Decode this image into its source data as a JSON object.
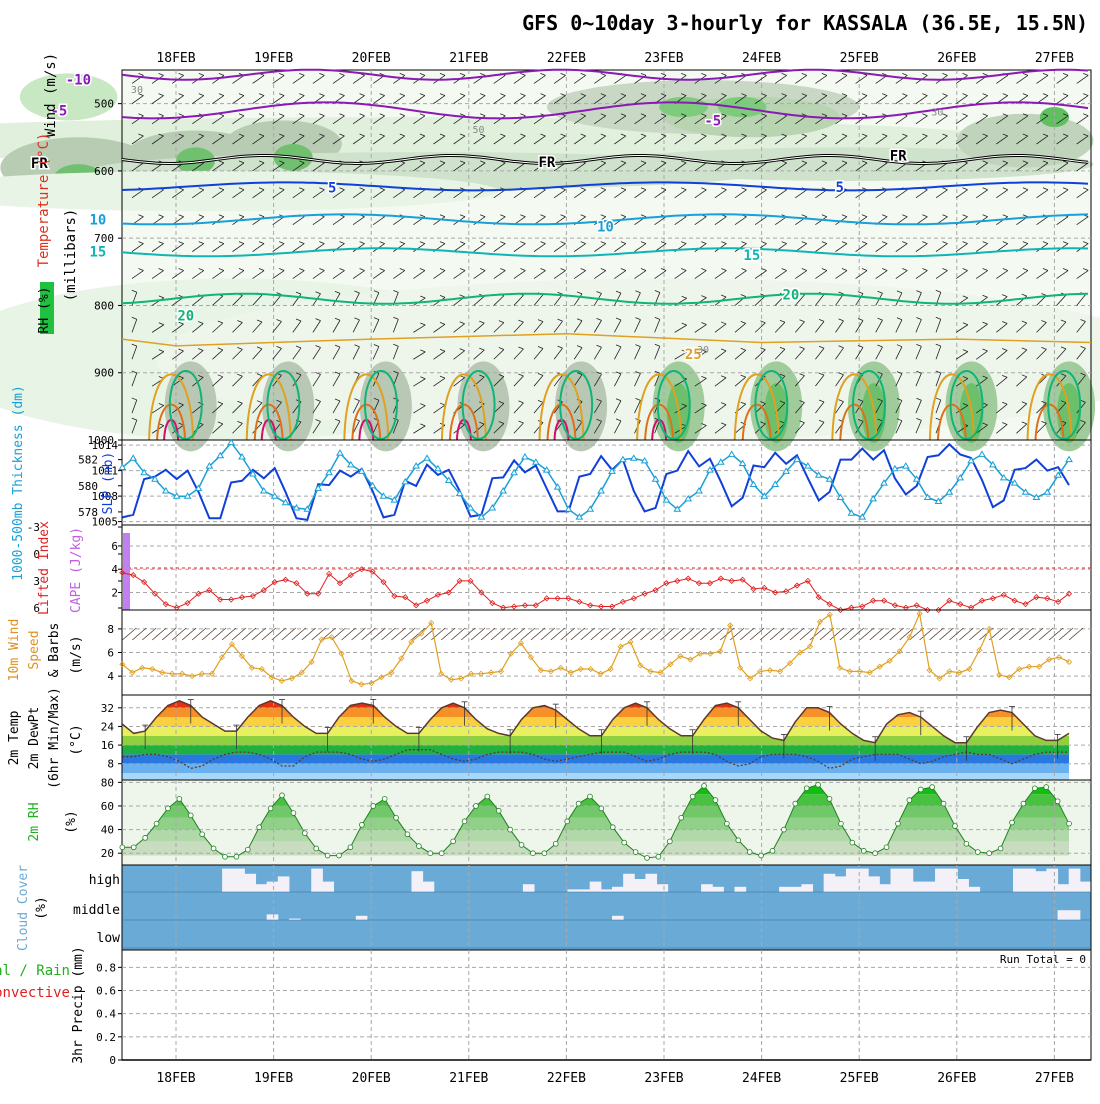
{
  "title": "GFS 0~10day 3-hourly for KASSALA (36.5E, 15.5N)",
  "dates": [
    "18FEB",
    "19FEB",
    "20FEB",
    "21FEB",
    "22FEB",
    "23FEB",
    "24FEB",
    "25FEB",
    "26FEB",
    "27FEB"
  ],
  "run_total": "Run Total = 0",
  "colors": {
    "purple": "#8a1ab4",
    "blue": "#1040d8",
    "cyan": "#18a0d8",
    "teal": "#10b4b4",
    "green": "#10b478",
    "orange": "#e0a020",
    "darkorange": "#e07018",
    "magenta": "#d0106a",
    "cloud": "#6aaad6",
    "rain": "#e02020",
    "rhgreen": "#20b020"
  },
  "chart_data": [
    {
      "type": "contour",
      "panel": "upper-air",
      "ylabel_parts": [
        "RH (%)",
        "Temperature (°C)",
        "Wind (m/s)"
      ],
      "yunit": "(millibars)",
      "yticks": [
        "500",
        "600",
        "700",
        "800",
        "900",
        "1000"
      ],
      "ylim": [
        1000,
        450
      ],
      "contour_labels": [
        {
          "text": "-10",
          "t": -1.0,
          "p": 464,
          "color": "purple"
        },
        {
          "text": "-5",
          "t": -1.2,
          "p": 510,
          "color": "purple"
        },
        {
          "text": "-5",
          "t": 5.5,
          "p": 525,
          "color": "purple"
        },
        {
          "text": "FR",
          "t": -1.4,
          "p": 588,
          "color": "black"
        },
        {
          "text": "FR",
          "t": 3.8,
          "p": 587,
          "color": "black"
        },
        {
          "text": "FR",
          "t": 7.4,
          "p": 577,
          "color": "black"
        },
        {
          "text": "5",
          "t": 1.6,
          "p": 625,
          "color": "blue"
        },
        {
          "text": "5",
          "t": 6.8,
          "p": 624,
          "color": "blue"
        },
        {
          "text": "10",
          "t": -0.8,
          "p": 672,
          "color": "cyan"
        },
        {
          "text": "10",
          "t": 4.4,
          "p": 683,
          "color": "cyan"
        },
        {
          "text": "15",
          "t": -0.8,
          "p": 720,
          "color": "teal"
        },
        {
          "text": "15",
          "t": 5.9,
          "p": 725,
          "color": "teal"
        },
        {
          "text": "20",
          "t": 6.3,
          "p": 784,
          "color": "green"
        },
        {
          "text": "20",
          "t": 0.1,
          "p": 815,
          "color": "green"
        },
        {
          "text": "25",
          "t": 5.3,
          "p": 872,
          "color": "orange"
        },
        {
          "text": "0",
          "t": -2.0,
          "p": 932,
          "color": "green"
        }
      ],
      "rh_labels": [
        {
          "text": "30",
          "t": -0.4,
          "p": 478
        },
        {
          "text": "50",
          "t": 3.1,
          "p": 538
        },
        {
          "text": "30",
          "t": 7.8,
          "p": 512
        },
        {
          "text": "30",
          "t": -2.8,
          "p": 640
        },
        {
          "text": "30",
          "t": 5.4,
          "p": 865
        }
      ]
    },
    {
      "type": "line",
      "panel": "thickness-slp",
      "ylabel": "1000-500mb Thickness (dm)",
      "ylabel2": "SLP (mb)",
      "yticks_left": [
        "578",
        "580",
        "582"
      ],
      "yticks_right": [
        "1005",
        "1008",
        "1011",
        "1014"
      ],
      "ylim_left": [
        577,
        583.5
      ],
      "ylim_right": [
        1004.6,
        1014.6
      ],
      "series": [
        {
          "axis": "right",
          "color": "blue",
          "values": [
            1005.5,
            1005.8,
            1010,
            1010.3,
            1011.1,
            1010,
            1011,
            1008.5,
            1005.4,
            1005.4,
            1009.6,
            1009.8,
            1011.1,
            1010.1,
            1011.3,
            1008.5,
            1005.4,
            1005.2,
            1009.4,
            1009.3,
            1011,
            1010.3,
            1011.2,
            1008.6,
            1005.5,
            1005.8,
            1009.8,
            1009.2,
            1011.7,
            1010.5,
            1011.1,
            1008.6,
            1005.6,
            1005.8,
            1010.1,
            1010.2,
            1012.2,
            1010.8,
            1011.6,
            1008.9,
            1006.2,
            1006.2,
            1010.3,
            1010.6,
            1012.7,
            1011.1,
            1012.3,
            1008.6,
            1006.2,
            1006.6,
            1010.6,
            1011,
            1013.3,
            1011.5,
            1012.4,
            1009.7,
            1006.8,
            1007.8,
            1011.6,
            1011.4,
            1013.1,
            1011.8,
            1012.8,
            1010.1,
            1007.5,
            1008.5,
            1012.3,
            1012.3,
            1013.6,
            1012.3,
            1013.4,
            1010.1,
            1008.2,
            1009.2,
            1012.6,
            1012.8,
            1014.1,
            1012.9,
            1012.5,
            1009.9,
            1006.7,
            1007.5,
            1011.1,
            1011.3,
            1012.3,
            1011,
            1011.4,
            1009.3
          ]
        },
        {
          "axis": "left",
          "color": "cyan",
          "values": [
            581.4,
            582.1,
            581,
            580.5,
            579.6,
            579.2,
            579.2,
            579.8,
            581.5,
            582.3,
            583.3,
            582.2,
            580.9,
            579.6,
            579.2,
            578.7,
            578.3,
            578.2,
            579.8,
            581,
            582.5,
            581.6,
            581.1,
            580,
            579.2,
            578.9,
            580.3,
            581.5,
            582.1,
            581.3,
            580.4,
            579.4,
            578.3,
            577.6,
            578.3,
            579.6,
            581,
            582.2,
            581.8,
            581.2,
            579.9,
            578.2,
            577.6,
            578.2,
            579.6,
            581.1,
            582,
            582.1,
            581.9,
            580.5,
            578.9,
            578.2,
            579,
            579.6,
            581.2,
            581.8,
            582.4,
            581.7,
            580.1,
            579.2,
            580.1,
            581.1,
            582,
            581.5,
            580.8,
            580.5,
            579.1,
            577.9,
            577.6,
            579,
            580.2,
            581.3,
            581.5,
            580.5,
            579.1,
            578.8,
            579.5,
            580.6,
            581.9,
            582.4,
            581.6,
            580.6,
            580.2,
            579.5,
            579.1,
            579.5,
            580.8,
            582
          ]
        }
      ]
    },
    {
      "type": "line",
      "panel": "stability",
      "ylabel": "Lifted Index",
      "ylabel2": "CAPE (J/kg)",
      "yticks_left": [
        "-3",
        "0",
        "3",
        "6"
      ],
      "yticks_right": [
        "2",
        "4",
        "6"
      ],
      "ylim_right": [
        0.5,
        7.8
      ],
      "series": [
        {
          "axis": "right",
          "color": "rain",
          "values": [
            3.7,
            3.5,
            2.9,
            1.9,
            1,
            0.7,
            1.1,
            1.9,
            2.2,
            1.4,
            1.4,
            1.6,
            1.7,
            2.2,
            2.9,
            3.1,
            2.8,
            1.9,
            1.9,
            3.6,
            2.8,
            3.5,
            4,
            3.8,
            2.9,
            1.7,
            1.6,
            0.9,
            1.3,
            1.8,
            2,
            3,
            3,
            2,
            1.1,
            0.7,
            0.8,
            0.9,
            0.9,
            1.5,
            1.5,
            1.5,
            1.2,
            0.9,
            0.8,
            0.8,
            1.2,
            1.5,
            1.9,
            2.2,
            2.8,
            3,
            3.2,
            2.8,
            2.8,
            3.2,
            3,
            3.1,
            2.3,
            2.4,
            2,
            2.1,
            2.6,
            3,
            1.6,
            1,
            0.5,
            0.7,
            0.8,
            1.3,
            1.3,
            0.9,
            0.7,
            0.9,
            0.5,
            0.5,
            1.3,
            1,
            0.7,
            1.3,
            1.5,
            1.8,
            1.3,
            1,
            1.6,
            1.5,
            1.2,
            1.9
          ]
        }
      ]
    },
    {
      "type": "line",
      "panel": "wind10m",
      "ylabel": "10m Wind Speed & Barbs",
      "yunit": "(m/s)",
      "yticks": [
        "4",
        "6",
        "8"
      ],
      "ylim": [
        2.4,
        9.6
      ],
      "series": [
        {
          "color": "orange",
          "values": [
            5,
            4.3,
            4.7,
            4.6,
            4.3,
            4.2,
            4.2,
            4,
            4.2,
            4.2,
            5.6,
            6.7,
            5.7,
            4.7,
            4.6,
            3.9,
            3.6,
            3.8,
            4.3,
            5.2,
            7.1,
            7.3,
            5.9,
            3.6,
            3.3,
            3.4,
            3.9,
            4.3,
            5.5,
            6.9,
            7.6,
            8.5,
            4.2,
            3.7,
            3.8,
            4.2,
            4.2,
            4.3,
            4.4,
            5.9,
            6.8,
            5.6,
            4.5,
            4.4,
            4.7,
            4.3,
            4.6,
            4.6,
            4.2,
            4.6,
            6.5,
            6.9,
            4.9,
            4.4,
            4.3,
            5,
            5.7,
            5.4,
            5.9,
            5.9,
            6.1,
            8.3,
            4.7,
            3.8,
            4.4,
            4.5,
            4.4,
            5.1,
            6,
            6.5,
            8.6,
            9.2,
            4.7,
            4.4,
            4.4,
            4.3,
            4.8,
            5.3,
            6.1,
            7.3,
            9.3,
            4.5,
            3.8,
            4.4,
            4.3,
            4.6,
            6.2,
            8,
            4.1,
            3.9,
            4.6,
            4.8,
            4.8,
            5.4,
            5.6,
            5.2
          ]
        }
      ]
    },
    {
      "type": "area",
      "panel": "temp2m",
      "ylabel": "2m Temp 2m DewPt (6hr Min/Max)",
      "yunit": "(°C)",
      "yticks": [
        "8",
        "16",
        "24",
        "32"
      ],
      "ylim": [
        1,
        37.5
      ],
      "series": [
        {
          "name": "temp",
          "values": [
            25,
            21,
            22,
            28,
            33,
            35,
            33,
            28,
            25,
            22,
            22,
            28,
            33,
            35,
            33,
            28,
            24,
            21,
            21,
            28,
            33,
            34,
            33,
            28,
            24,
            21,
            21,
            27,
            32,
            34,
            32,
            27,
            23,
            21,
            20,
            27,
            32,
            33,
            31,
            27,
            23,
            20,
            20,
            27,
            32,
            34,
            32,
            27,
            23,
            20,
            20,
            27,
            33,
            34,
            32,
            27,
            22,
            19,
            18,
            26,
            32,
            32,
            30,
            25,
            21,
            18,
            17,
            25,
            29,
            30,
            28,
            24,
            20,
            17,
            17,
            24,
            30,
            31,
            30,
            25,
            20,
            18,
            18,
            21
          ]
        },
        {
          "name": "dewpt",
          "values": [
            11,
            11,
            12,
            12,
            11,
            9,
            6,
            7,
            10,
            12,
            13,
            13,
            12,
            10,
            7,
            7,
            11,
            13,
            13,
            13,
            12,
            10,
            9,
            10,
            12,
            14,
            14,
            14,
            12,
            10,
            9,
            10,
            12,
            13,
            13,
            13,
            12,
            10,
            9,
            10,
            11,
            12,
            13,
            13,
            13,
            11,
            9,
            10,
            12,
            13,
            13,
            13,
            12,
            9,
            7,
            8,
            11,
            12,
            12,
            12,
            11,
            9,
            6,
            7,
            10,
            11,
            12,
            12,
            12,
            10,
            8,
            9,
            11,
            12,
            13,
            12,
            12,
            10,
            8,
            10,
            12,
            13,
            13,
            13
          ]
        }
      ]
    },
    {
      "type": "area",
      "panel": "rh2m",
      "ylabel": "2m RH",
      "yunit": "(%)",
      "yticks": [
        "20",
        "40",
        "60",
        "80"
      ],
      "ylim": [
        10,
        82
      ],
      "series": [
        {
          "name": "rh",
          "values": [
            25,
            25,
            33,
            45,
            58,
            66,
            52,
            36,
            24,
            17,
            17,
            23,
            42,
            58,
            69,
            54,
            37,
            24,
            18,
            18,
            25,
            44,
            60,
            66,
            50,
            36,
            26,
            20,
            20,
            30,
            47,
            60,
            68,
            56,
            40,
            27,
            20,
            20,
            28,
            47,
            62,
            68,
            58,
            42,
            29,
            21,
            16,
            17,
            30,
            50,
            68,
            77,
            65,
            45,
            31,
            21,
            18,
            22,
            40,
            62,
            75,
            78,
            66,
            45,
            29,
            22,
            20,
            25,
            45,
            65,
            74,
            76,
            62,
            43,
            28,
            21,
            20,
            24,
            46,
            62,
            75,
            76,
            64,
            45
          ]
        }
      ]
    },
    {
      "type": "bar",
      "panel": "cloud",
      "ylabel": "Cloud Cover",
      "yunit": "(%)",
      "categories_y": [
        "high",
        "middle",
        "low"
      ],
      "series": [
        {
          "name": "high",
          "values": [
            0,
            0,
            0,
            0,
            0,
            0,
            0,
            0,
            90,
            90,
            70,
            30,
            40,
            60,
            0,
            0,
            90,
            40,
            0,
            0,
            0,
            0,
            0,
            0,
            0,
            80,
            40,
            0,
            0,
            0,
            0,
            0,
            0,
            0,
            0,
            30,
            0,
            0,
            0,
            10,
            10,
            40,
            10,
            20,
            70,
            50,
            70,
            30,
            0,
            0,
            0,
            30,
            20,
            0,
            20,
            0,
            0,
            0,
            20,
            20,
            30,
            0,
            70,
            60,
            90,
            90,
            60,
            30,
            90,
            90,
            40,
            40,
            90,
            90,
            50,
            20,
            0,
            0,
            0,
            90,
            90,
            80,
            90,
            30,
            90,
            40
          ]
        },
        {
          "name": "middle",
          "values": [
            0,
            0,
            0,
            0,
            0,
            0,
            0,
            0,
            0,
            0,
            0,
            0,
            40,
            0,
            10,
            0,
            0,
            0,
            0,
            0,
            30,
            0,
            0,
            0,
            0,
            0,
            0,
            0,
            0,
            0,
            0,
            0,
            0,
            0,
            0,
            0,
            0,
            0,
            0,
            0,
            0,
            0,
            0,
            30,
            0,
            0,
            0,
            0,
            0,
            0,
            0,
            0,
            0,
            0,
            0,
            0,
            0,
            0,
            0,
            0,
            0,
            0,
            0,
            0,
            0,
            0,
            0,
            0,
            0,
            0,
            0,
            0,
            0,
            0,
            0,
            0,
            0,
            0,
            0,
            0,
            0,
            0,
            0,
            70,
            70,
            0
          ]
        }
      ]
    },
    {
      "type": "bar",
      "panel": "precip",
      "ylabel_parts": [
        "Total / Rain",
        "Convective"
      ],
      "ylabel": "3hr Precip (mm)",
      "yticks": [
        "0",
        "0.2",
        "0.4",
        "0.6",
        "0.8"
      ],
      "ylim": [
        0,
        0.95
      ],
      "values": []
    }
  ]
}
